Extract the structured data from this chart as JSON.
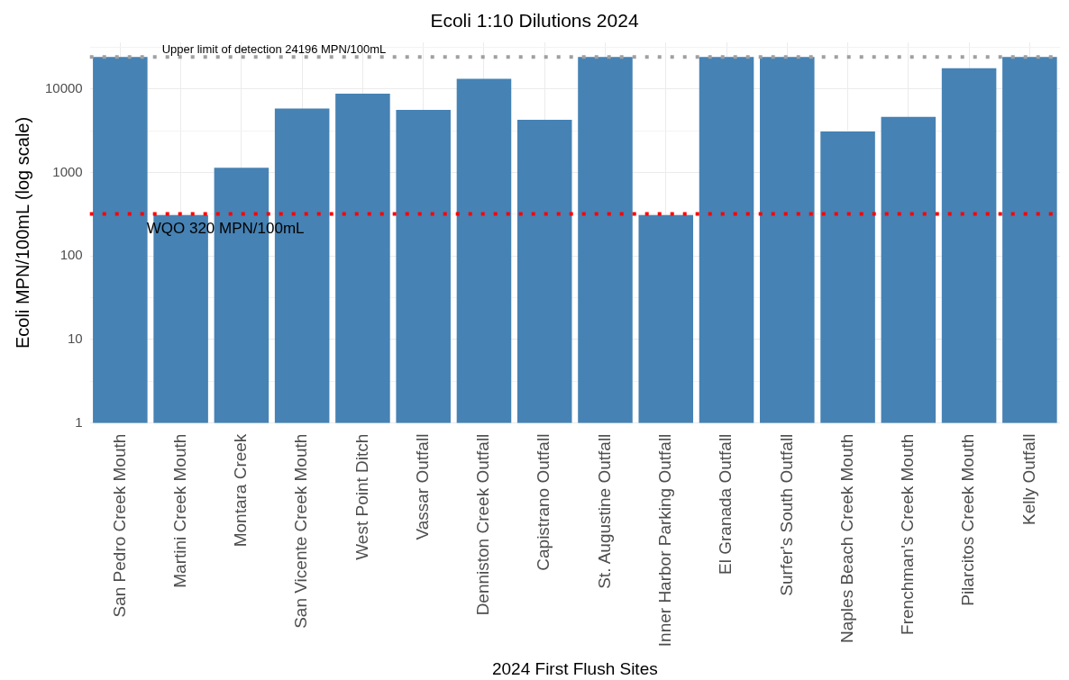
{
  "chart_data": {
    "type": "bar",
    "title": "Ecoli 1:10 Dilutions 2024",
    "xlabel": "2024 First Flush Sites",
    "ylabel": "Ecoli MPN/100mL (log scale)",
    "categories": [
      "San Pedro Creek Mouth",
      "Martini Creek Mouth",
      "Montara Creek",
      "San Vicente Creek Mouth",
      "West Point Ditch",
      "Vassar Outfall",
      "Denniston Creek Outfall",
      "Capistrano Outfall",
      "St. Augustine Outfall",
      "Inner Harbor Parking Outfall",
      "El Granada Outfall",
      "Surfer's South Outfall",
      "Naples Beach Creek Mouth",
      "Frenchman's Creek Mouth",
      "Pilarcitos Creek Mouth",
      "Kelly Outfall"
    ],
    "values": [
      24196,
      310,
      1140,
      5820,
      8790,
      5630,
      13250,
      4280,
      24196,
      310,
      24196,
      24196,
      3090,
      4640,
      17700,
      24196
    ],
    "color": "#4682b4",
    "log": true,
    "ylim": [
      1,
      36000
    ],
    "yticks": [
      1,
      {
        "value": 3.162,
        "label": null
      },
      10,
      {
        "value": 31.62,
        "label": null
      },
      100,
      {
        "value": 316.2,
        "label": null
      },
      1000,
      {
        "value": 3162,
        "label": null
      },
      10000,
      {
        "value": 31620,
        "label": null
      }
    ],
    "grid": true,
    "ref_lines": [
      {
        "axis": "y",
        "value": 24196,
        "label": "Upper limit of detection 24196 MPN/100mL",
        "color": "#a0a0a0",
        "line_style": "dotted"
      },
      {
        "axis": "y",
        "value": 320,
        "label": "WQO 320 MPN/100mL",
        "color": "#ff0000",
        "line_style": "dotted"
      }
    ]
  }
}
